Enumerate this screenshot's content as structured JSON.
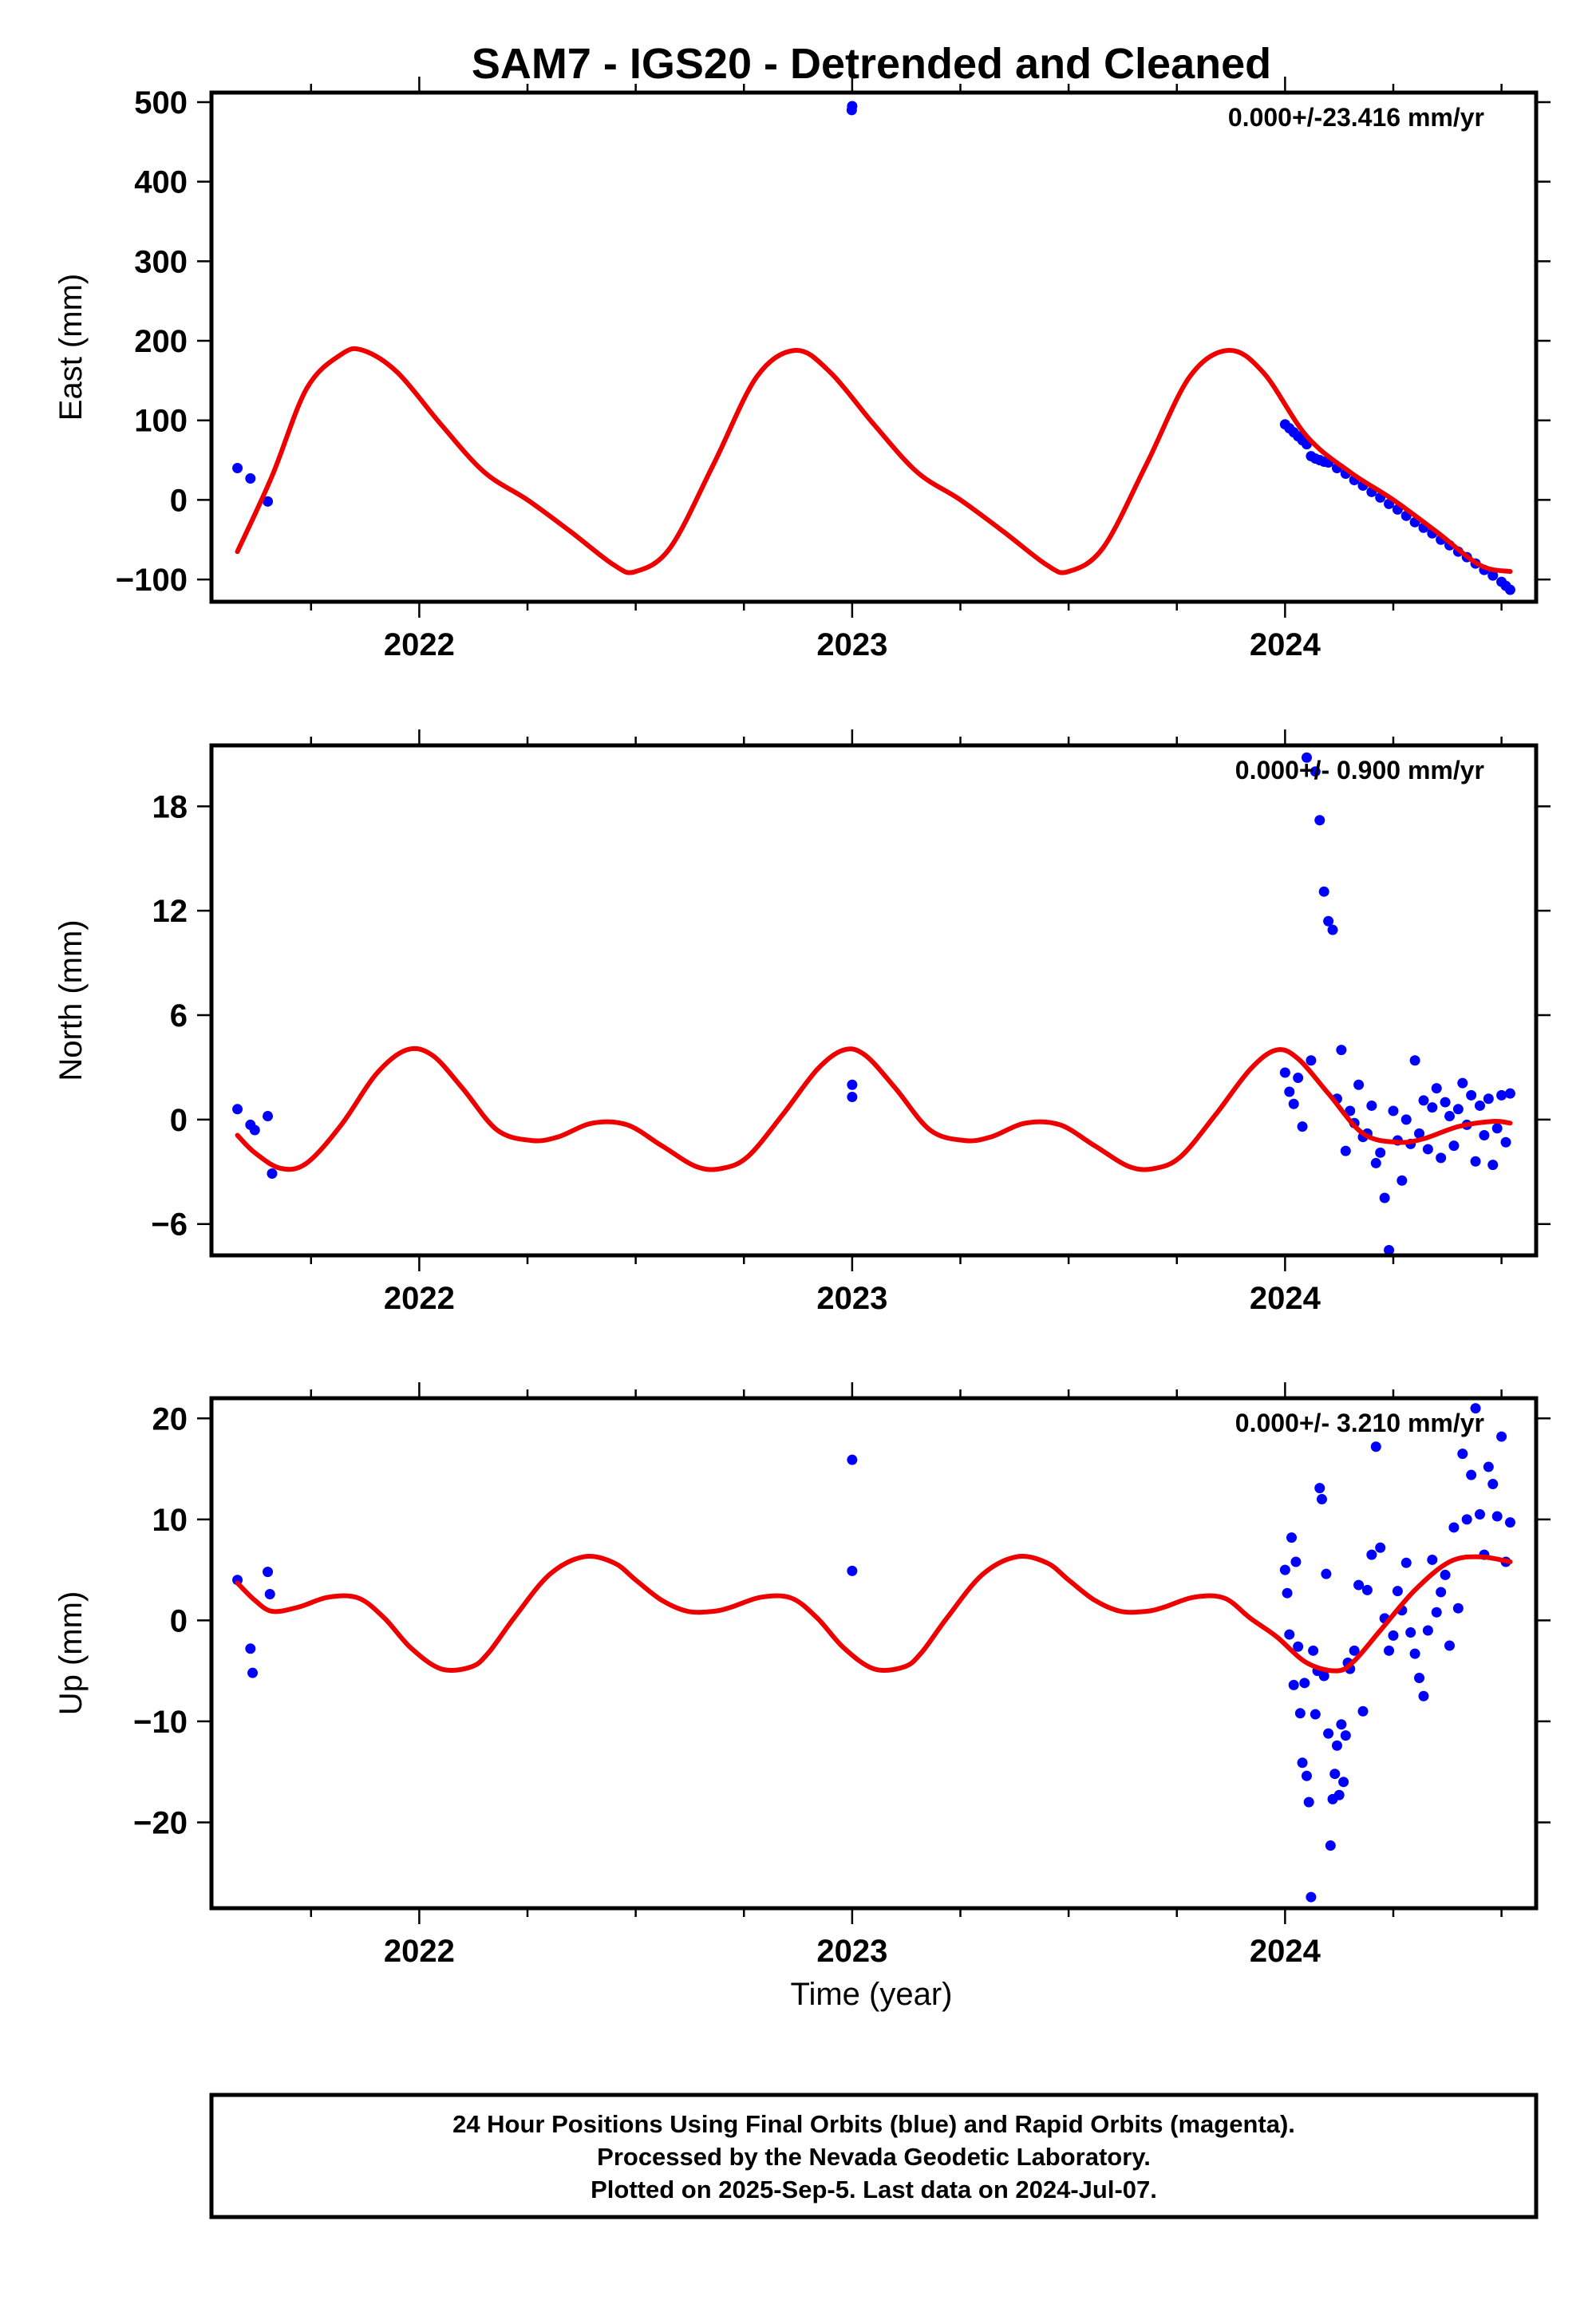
{
  "title": "SAM7 - IGS20 - Detrended and Cleaned",
  "x_axis_label": "Time (year)",
  "footer": {
    "lines": [
      "24 Hour Positions Using Final Orbits (blue) and Rapid Orbits (magenta).",
      "Processed by the Nevada Geodetic Laboratory.",
      "Plotted on 2025-Sep-5. Last data on 2024-Jul-07."
    ]
  },
  "colors": {
    "data": "#0000ff",
    "model": "#ee0000",
    "frame": "#000000"
  },
  "chart_data": [
    {
      "type": "scatter",
      "panel": "east",
      "ylabel": "East (mm)",
      "rate": "0.000+/-23.416 mm/yr",
      "xlim": [
        2021.52,
        2024.58
      ],
      "ylim": [
        -128,
        512
      ],
      "xticks": [
        2022,
        2023,
        2024
      ],
      "xtick_labels": [
        "2022",
        "2023",
        "2024"
      ],
      "yticks": [
        -100,
        0,
        100,
        200,
        300,
        400,
        500
      ],
      "ytick_labels": [
        "−100",
        "0",
        "100",
        "200",
        "300",
        "400",
        "500"
      ],
      "model": {
        "name": "seasonal model",
        "x": [
          2021.58,
          2021.66,
          2021.74,
          2021.82,
          2021.87,
          2021.95,
          2022.05,
          2022.15,
          2022.25,
          2022.35,
          2022.45,
          2022.5,
          2022.58,
          2022.68,
          2022.78,
          2022.87,
          2022.95,
          2023.05,
          2023.15,
          2023.25,
          2023.35,
          2023.45,
          2023.5,
          2023.58,
          2023.68,
          2023.78,
          2023.87,
          2023.95,
          2024.05,
          2024.15,
          2024.25,
          2024.35,
          2024.45,
          2024.52
        ],
        "y": [
          -65,
          30,
          140,
          183,
          188,
          160,
          95,
          35,
          0,
          -40,
          -82,
          -90,
          -60,
          45,
          155,
          188,
          160,
          95,
          35,
          0,
          -40,
          -82,
          -90,
          -60,
          45,
          155,
          188,
          160,
          80,
          35,
          0,
          -40,
          -82,
          -90
        ]
      },
      "series": [
        {
          "name": "Final Orbits",
          "x": [
            2021.58,
            2021.61,
            2021.65,
            2022.999,
            2023.0,
            2024.0,
            2024.01,
            2024.02,
            2024.03,
            2024.04,
            2024.05,
            2024.06,
            2024.07,
            2024.08,
            2024.09,
            2024.1,
            2024.12,
            2024.14,
            2024.16,
            2024.18,
            2024.2,
            2024.22,
            2024.24,
            2024.26,
            2024.28,
            2024.3,
            2024.32,
            2024.34,
            2024.36,
            2024.38,
            2024.4,
            2024.42,
            2024.44,
            2024.46,
            2024.48,
            2024.5,
            2024.51,
            2024.52
          ],
          "y": [
            40,
            27,
            -2,
            490,
            495,
            95,
            90,
            85,
            80,
            75,
            70,
            55,
            52,
            50,
            48,
            47,
            40,
            33,
            25,
            18,
            10,
            3,
            -5,
            -12,
            -20,
            -28,
            -35,
            -42,
            -50,
            -57,
            -65,
            -72,
            -80,
            -88,
            -95,
            -103,
            -108,
            -113
          ]
        }
      ]
    },
    {
      "type": "scatter",
      "panel": "north",
      "ylabel": "North (mm)",
      "rate": "0.000+/- 0.900 mm/yr",
      "xlim": [
        2021.52,
        2024.58
      ],
      "ylim": [
        -7.8,
        21.5
      ],
      "xticks": [
        2022,
        2023,
        2024
      ],
      "xtick_labels": [
        "2022",
        "2023",
        "2024"
      ],
      "yticks": [
        -6,
        0,
        6,
        12,
        18
      ],
      "ytick_labels": [
        "−6",
        "0",
        "6",
        "12",
        "18"
      ],
      "model": {
        "name": "seasonal model",
        "x": [
          2021.58,
          2021.62,
          2021.68,
          2021.74,
          2021.82,
          2021.9,
          2021.97,
          2022.03,
          2022.1,
          2022.18,
          2022.26,
          2022.32,
          2022.4,
          2022.48,
          2022.56,
          2022.64,
          2022.7,
          2022.76,
          2022.84,
          2022.92,
          2022.98,
          2023.03,
          2023.1,
          2023.18,
          2023.26,
          2023.32,
          2023.4,
          2023.48,
          2023.56,
          2023.64,
          2023.7,
          2023.76,
          2023.84,
          2023.92,
          2023.98,
          2024.03,
          2024.1,
          2024.18,
          2024.26,
          2024.32,
          2024.4,
          2024.48,
          2024.52
        ],
        "y": [
          -0.9,
          -1.9,
          -2.8,
          -2.5,
          -0.3,
          2.6,
          4.0,
          3.7,
          1.8,
          -0.6,
          -1.2,
          -1.0,
          -0.2,
          -0.3,
          -1.5,
          -2.7,
          -2.8,
          -2.1,
          0.3,
          2.9,
          4.0,
          3.7,
          1.8,
          -0.6,
          -1.2,
          -1.0,
          -0.2,
          -0.3,
          -1.5,
          -2.7,
          -2.8,
          -2.1,
          0.3,
          2.9,
          4.0,
          3.5,
          1.5,
          -0.8,
          -1.3,
          -1.1,
          -0.4,
          -0.1,
          -0.2
        ]
      },
      "series": [
        {
          "name": "Final Orbits",
          "x": [
            2021.58,
            2021.61,
            2021.62,
            2021.65,
            2021.66,
            2023.0,
            2023.0,
            2024.0,
            2024.01,
            2024.02,
            2024.03,
            2024.04,
            2024.05,
            2024.06,
            2024.07,
            2024.08,
            2024.09,
            2024.1,
            2024.11,
            2024.12,
            2024.13,
            2024.14,
            2024.15,
            2024.16,
            2024.17,
            2024.18,
            2024.19,
            2024.2,
            2024.21,
            2024.22,
            2024.23,
            2024.24,
            2024.25,
            2024.26,
            2024.27,
            2024.28,
            2024.29,
            2024.3,
            2024.31,
            2024.32,
            2024.33,
            2024.34,
            2024.35,
            2024.36,
            2024.37,
            2024.38,
            2024.39,
            2024.4,
            2024.41,
            2024.42,
            2024.43,
            2024.44,
            2024.45,
            2024.46,
            2024.47,
            2024.48,
            2024.49,
            2024.5,
            2024.51,
            2024.52
          ],
          "y": [
            0.6,
            -0.3,
            -0.6,
            0.2,
            -3.1,
            2.0,
            1.3,
            2.7,
            1.6,
            0.9,
            2.4,
            -0.4,
            20.8,
            3.4,
            20.0,
            17.2,
            13.1,
            11.4,
            10.9,
            1.2,
            4.0,
            -1.8,
            0.5,
            -0.2,
            2.0,
            -1.0,
            -0.8,
            0.8,
            -2.5,
            -1.9,
            -4.5,
            -7.5,
            0.5,
            -1.2,
            -3.5,
            0.0,
            -1.4,
            3.4,
            -0.8,
            1.1,
            -1.7,
            0.7,
            1.8,
            -2.2,
            1.0,
            0.2,
            -1.5,
            0.6,
            2.1,
            -0.3,
            1.4,
            -2.4,
            0.8,
            -0.9,
            1.2,
            -2.6,
            -0.5,
            1.4,
            -1.3,
            1.5
          ]
        }
      ]
    },
    {
      "type": "scatter",
      "panel": "up",
      "ylabel": "Up (mm)",
      "rate": "0.000+/- 3.210 mm/yr",
      "xlim": [
        2021.52,
        2024.58
      ],
      "ylim": [
        -28.5,
        22
      ],
      "xticks": [
        2022,
        2023,
        2024
      ],
      "xtick_labels": [
        "2022",
        "2023",
        "2024"
      ],
      "yticks": [
        -20,
        -10,
        0,
        10,
        20
      ],
      "ytick_labels": [
        "−20",
        "−10",
        "0",
        "10",
        "20"
      ],
      "model": {
        "name": "seasonal model",
        "x": [
          2021.58,
          2021.62,
          2021.66,
          2021.72,
          2021.79,
          2021.86,
          2021.92,
          2021.98,
          2022.05,
          2022.12,
          2022.16,
          2022.22,
          2022.3,
          2022.38,
          2022.45,
          2022.5,
          2022.56,
          2022.62,
          2022.68,
          2022.72,
          2022.79,
          2022.86,
          2022.92,
          2022.98,
          2023.05,
          2023.12,
          2023.16,
          2023.22,
          2023.3,
          2023.38,
          2023.45,
          2023.5,
          2023.56,
          2023.62,
          2023.68,
          2023.72,
          2023.79,
          2023.86,
          2023.92,
          2023.98,
          2024.05,
          2024.12,
          2024.16,
          2024.22,
          2024.3,
          2024.38,
          2024.45,
          2024.52
        ],
        "y": [
          3.7,
          2.0,
          0.9,
          1.3,
          2.3,
          2.2,
          0.2,
          -2.7,
          -4.8,
          -4.6,
          -3.2,
          0.3,
          4.5,
          6.3,
          5.7,
          4.0,
          2.0,
          0.9,
          0.9,
          1.3,
          2.3,
          2.2,
          0.2,
          -2.7,
          -4.8,
          -4.6,
          -3.2,
          0.3,
          4.5,
          6.3,
          5.7,
          4.0,
          2.0,
          0.9,
          0.9,
          1.3,
          2.3,
          2.2,
          0.2,
          -1.6,
          -4.2,
          -5.0,
          -4.0,
          -1.0,
          3.0,
          5.8,
          6.3,
          5.8
        ]
      },
      "series": [
        {
          "name": "Final Orbits",
          "x": [
            2021.58,
            2021.61,
            2021.615,
            2021.65,
            2021.655,
            2023.0,
            2023.0,
            2024.0,
            2024.005,
            2024.01,
            2024.015,
            2024.02,
            2024.025,
            2024.03,
            2024.035,
            2024.04,
            2024.045,
            2024.05,
            2024.055,
            2024.06,
            2024.065,
            2024.07,
            2024.075,
            2024.08,
            2024.085,
            2024.09,
            2024.095,
            2024.1,
            2024.105,
            2024.11,
            2024.115,
            2024.12,
            2024.125,
            2024.13,
            2024.135,
            2024.14,
            2024.145,
            2024.15,
            2024.16,
            2024.17,
            2024.18,
            2024.19,
            2024.2,
            2024.21,
            2024.22,
            2024.23,
            2024.24,
            2024.25,
            2024.26,
            2024.27,
            2024.28,
            2024.29,
            2024.3,
            2024.31,
            2024.32,
            2024.33,
            2024.34,
            2024.35,
            2024.36,
            2024.37,
            2024.38,
            2024.39,
            2024.4,
            2024.41,
            2024.42,
            2024.43,
            2024.44,
            2024.45,
            2024.46,
            2024.47,
            2024.48,
            2024.49,
            2024.5,
            2024.51,
            2024.52
          ],
          "y": [
            4.0,
            -2.8,
            -5.2,
            4.8,
            2.6,
            15.9,
            4.9,
            5.0,
            2.7,
            -1.4,
            8.2,
            -6.4,
            5.8,
            -2.6,
            -9.2,
            -14.1,
            -6.2,
            -15.4,
            -18.0,
            -27.4,
            -3.0,
            -9.3,
            -5.0,
            13.1,
            12.0,
            -5.5,
            4.6,
            -11.2,
            -22.3,
            -17.7,
            -15.2,
            -12.4,
            -17.3,
            -10.3,
            -16.0,
            -11.4,
            -4.2,
            -4.8,
            -3.0,
            3.5,
            -9.0,
            3.0,
            6.5,
            17.2,
            7.2,
            0.2,
            -3.0,
            -1.5,
            2.9,
            1.0,
            5.7,
            -1.2,
            -3.3,
            -5.7,
            -7.5,
            -1.0,
            6.0,
            0.8,
            2.8,
            4.5,
            -2.5,
            9.2,
            1.2,
            16.5,
            10.0,
            14.4,
            21.0,
            10.5,
            6.5,
            15.2,
            13.5,
            10.3,
            18.2,
            5.8,
            9.7
          ]
        }
      ]
    }
  ]
}
